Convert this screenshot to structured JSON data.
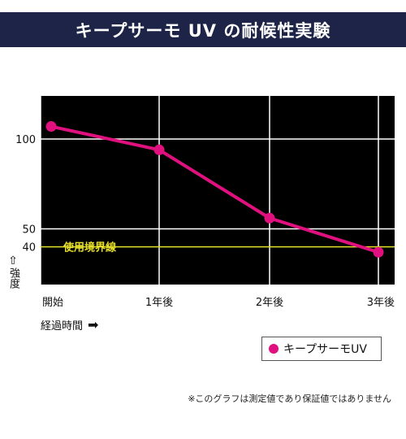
{
  "banner": {
    "title": "キープサーモ UV の耐候性実験"
  },
  "colors": {
    "banner_bg": "#1d2447",
    "series": "#e0117f",
    "threshold": "#e6df2a",
    "plot_bg": "#000000",
    "grid": "#ffffff"
  },
  "chart_data": {
    "type": "line",
    "categories": [
      "開始",
      "1年後",
      "2年後",
      "3年後"
    ],
    "series": [
      {
        "name": "キープサーモUV",
        "values": [
          107,
          94,
          56,
          37
        ]
      }
    ],
    "y_ticks": [
      {
        "value": 100,
        "label": "100"
      },
      {
        "value": 50,
        "label": "50"
      },
      {
        "value": 40,
        "label": "40"
      }
    ],
    "threshold": {
      "value": 40,
      "label": "使用境界線"
    },
    "ylim": [
      19,
      124
    ],
    "ylabel": "強度",
    "xlabel": "経過時間",
    "grid": true,
    "legend_position": "bottom-right"
  },
  "footnote": "※このグラフは測定値であり保証値ではありません"
}
